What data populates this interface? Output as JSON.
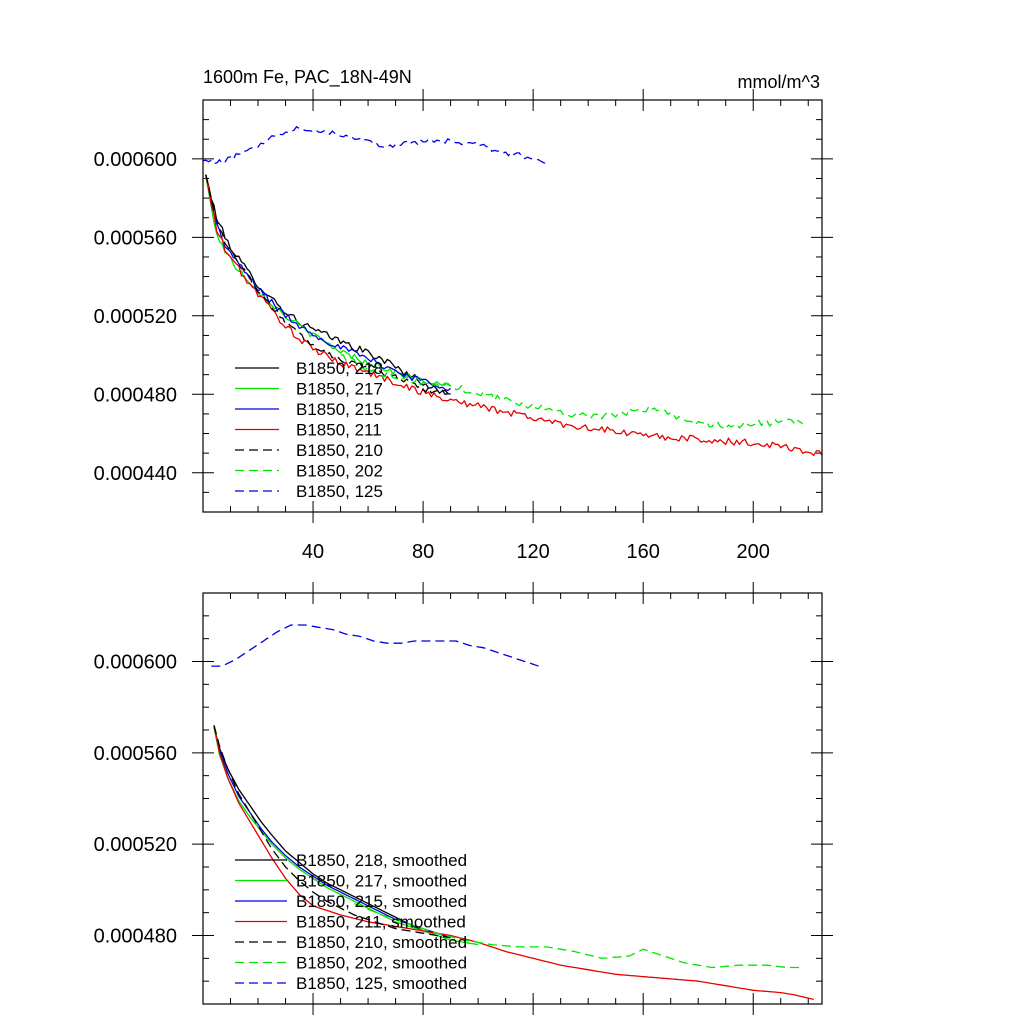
{
  "chart_data": [
    {
      "type": "line",
      "title": "1600m Fe, PAC_18N-49N",
      "units": "mmol/m^3",
      "xlim": [
        0,
        225
      ],
      "ylim": [
        0.00042,
        0.00063
      ],
      "xticks": [
        40,
        80,
        120,
        160,
        200
      ],
      "xtick_labels": [
        "40",
        "80",
        "120",
        "160",
        "200"
      ],
      "yticks": [
        0.00044,
        0.00048,
        0.00052,
        0.00056,
        0.0006
      ],
      "ytick_labels": [
        "0.000440",
        "0.000480",
        "0.000520",
        "0.000560",
        "0.000600"
      ],
      "legend_position": "lower-left",
      "series": [
        {
          "name": "B1850, 218",
          "color": "#000000",
          "dash": "solid",
          "noise": 1.8e-06,
          "x": [
            1,
            3,
            5,
            8,
            12,
            16,
            20,
            25,
            30,
            35,
            40,
            45,
            50,
            55,
            60,
            65,
            70,
            75,
            80,
            85,
            90
          ],
          "values": [
            0.000592,
            0.00058,
            0.00057,
            0.00056,
            0.000551,
            0.000543,
            0.000536,
            0.000529,
            0.000522,
            0.000517,
            0.000513,
            0.00051,
            0.000507,
            0.000504,
            0.000501,
            0.000498,
            0.000494,
            0.00049,
            0.000486,
            0.000482,
            0.00048
          ]
        },
        {
          "name": "B1850, 217",
          "color": "#00e600",
          "dash": "solid",
          "noise": 1.6e-06,
          "x": [
            1,
            3,
            5,
            8,
            12,
            16,
            20,
            25,
            30,
            35,
            40,
            45,
            50,
            55,
            60,
            65,
            70,
            75,
            80,
            85,
            90
          ],
          "values": [
            0.000591,
            0.000575,
            0.000562,
            0.000553,
            0.000545,
            0.000539,
            0.000533,
            0.000526,
            0.00052,
            0.000515,
            0.00051,
            0.000506,
            0.000502,
            0.000499,
            0.000496,
            0.000494,
            0.000491,
            0.000489,
            0.000487,
            0.000485,
            0.000484
          ]
        },
        {
          "name": "B1850, 215",
          "color": "#0000e6",
          "dash": "solid",
          "noise": 1.6e-06,
          "x": [
            1,
            3,
            5,
            8,
            12,
            16,
            20,
            25,
            30,
            35,
            40,
            45,
            50,
            55,
            60,
            65,
            70,
            75,
            80,
            85,
            90
          ],
          "values": [
            0.000592,
            0.000578,
            0.000566,
            0.000556,
            0.000548,
            0.000541,
            0.000534,
            0.000527,
            0.00052,
            0.000515,
            0.000511,
            0.000507,
            0.000504,
            0.000501,
            0.000498,
            0.000495,
            0.000492,
            0.000489,
            0.000487,
            0.000485,
            0.000483
          ]
        },
        {
          "name": "B1850, 211",
          "color": "#e60000",
          "dash": "solid",
          "noise": 1.8e-06,
          "x": [
            1,
            3,
            5,
            8,
            12,
            16,
            20,
            25,
            30,
            35,
            40,
            50,
            60,
            70,
            80,
            90,
            100,
            110,
            120,
            130,
            140,
            150,
            160,
            170,
            180,
            190,
            200,
            210,
            215,
            220,
            225
          ],
          "values": [
            0.000592,
            0.000577,
            0.000564,
            0.000554,
            0.000546,
            0.000538,
            0.000531,
            0.000523,
            0.000515,
            0.000508,
            0.000503,
            0.000496,
            0.000491,
            0.000486,
            0.000481,
            0.000477,
            0.000474,
            0.000471,
            0.000468,
            0.000465,
            0.000463,
            0.000461,
            0.000459,
            0.000458,
            0.000457,
            0.000456,
            0.000455,
            0.000454,
            0.000452,
            0.000451,
            0.000449
          ]
        },
        {
          "name": "B1850, 210",
          "color": "#000000",
          "dash": "dashed",
          "noise": 1.6e-06,
          "x": [
            1,
            3,
            5,
            8,
            12,
            16,
            20,
            25,
            30,
            35,
            40,
            45,
            50,
            55,
            60,
            65,
            70,
            75,
            80,
            85,
            90
          ],
          "values": [
            0.000592,
            0.000579,
            0.000569,
            0.000558,
            0.000549,
            0.000541,
            0.000533,
            0.000525,
            0.000517,
            0.00051,
            0.000505,
            0.000501,
            0.000498,
            0.000496,
            0.000494,
            0.000491,
            0.000489,
            0.000486,
            0.000483,
            0.000481,
            0.00048
          ]
        },
        {
          "name": "B1850, 202",
          "color": "#00e600",
          "dash": "dashed",
          "noise": 1.8e-06,
          "x": [
            50,
            60,
            70,
            80,
            90,
            100,
            110,
            120,
            130,
            140,
            150,
            160,
            170,
            180,
            190,
            200,
            210,
            218
          ],
          "values": [
            0.0005,
            0.000493,
            0.000489,
            0.000486,
            0.000484,
            0.000481,
            0.000477,
            0.000474,
            0.000471,
            0.000469,
            0.000469,
            0.000473,
            0.00047,
            0.000465,
            0.000464,
            0.000465,
            0.000466,
            0.000465
          ]
        },
        {
          "name": "B1850, 125",
          "color": "#0000e6",
          "dash": "dashed",
          "noise": 1.2e-06,
          "x": [
            0,
            5,
            10,
            15,
            20,
            25,
            30,
            35,
            40,
            45,
            50,
            55,
            60,
            65,
            70,
            75,
            80,
            85,
            90,
            95,
            100,
            105,
            110,
            115,
            120,
            126
          ],
          "values": [
            0.000599,
            0.000598,
            0.0006,
            0.000604,
            0.000607,
            0.000611,
            0.000614,
            0.000616,
            0.000615,
            0.000614,
            0.000612,
            0.000611,
            0.000609,
            0.000607,
            0.000607,
            0.000608,
            0.000609,
            0.000609,
            0.000609,
            0.000608,
            0.000607,
            0.000605,
            0.000603,
            0.000602,
            0.0006,
            0.000597
          ]
        }
      ]
    },
    {
      "type": "line",
      "title": "",
      "units": "",
      "xlim": [
        0,
        225
      ],
      "ylim": [
        0.00045,
        0.00063
      ],
      "xticks": [
        40,
        80,
        120,
        160,
        200
      ],
      "xtick_labels": [],
      "yticks": [
        0.00048,
        0.00052,
        0.00056,
        0.0006
      ],
      "ytick_labels": [
        "0.000480",
        "0.000520",
        "0.000560",
        "0.000600"
      ],
      "legend_position": "lower-left",
      "series": [
        {
          "name": "B1850, 218, smoothed",
          "color": "#000000",
          "dash": "solid",
          "noise": 0,
          "x": [
            4,
            6,
            9,
            13,
            17,
            21,
            25,
            30,
            35,
            40,
            45,
            50,
            55,
            60,
            65,
            70,
            75,
            80,
            85,
            88
          ],
          "values": [
            0.000571,
            0.000562,
            0.000553,
            0.000544,
            0.000537,
            0.00053,
            0.000524,
            0.000517,
            0.000512,
            0.000507,
            0.000503,
            0.0005,
            0.000497,
            0.000494,
            0.000491,
            0.000488,
            0.000485,
            0.000482,
            0.000481,
            0.00048
          ]
        },
        {
          "name": "B1850, 217, smoothed",
          "color": "#00e600",
          "dash": "solid",
          "noise": 0,
          "x": [
            4,
            6,
            9,
            13,
            17,
            21,
            25,
            30,
            35,
            40,
            45,
            50,
            55,
            60,
            65,
            70,
            75,
            80,
            85,
            90,
            95,
            100
          ],
          "values": [
            0.000571,
            0.000559,
            0.000549,
            0.000539,
            0.000532,
            0.000526,
            0.00052,
            0.000514,
            0.000509,
            0.000505,
            0.000501,
            0.000498,
            0.000495,
            0.000492,
            0.000489,
            0.000486,
            0.000484,
            0.000482,
            0.00048,
            0.000478,
            0.000477,
            0.000476
          ]
        },
        {
          "name": "B1850, 215, smoothed",
          "color": "#0000e6",
          "dash": "solid",
          "noise": 0,
          "x": [
            4,
            6,
            9,
            13,
            17,
            21,
            25,
            30,
            35,
            40,
            45,
            50,
            55,
            60,
            65,
            70,
            75,
            80,
            85,
            90
          ],
          "values": [
            0.000572,
            0.000561,
            0.000551,
            0.000541,
            0.000534,
            0.000527,
            0.000521,
            0.000515,
            0.00051,
            0.000506,
            0.000502,
            0.000499,
            0.000496,
            0.000493,
            0.00049,
            0.000487,
            0.000485,
            0.000483,
            0.000481,
            0.000479
          ]
        },
        {
          "name": "B1850, 211, smoothed",
          "color": "#e60000",
          "dash": "solid",
          "noise": 0,
          "x": [
            4,
            6,
            9,
            13,
            17,
            21,
            25,
            30,
            35,
            40,
            50,
            60,
            70,
            80,
            90,
            100,
            110,
            120,
            130,
            140,
            150,
            160,
            170,
            180,
            190,
            200,
            210,
            215,
            222
          ],
          "values": [
            0.000572,
            0.00056,
            0.000549,
            0.000538,
            0.00053,
            0.000522,
            0.000514,
            0.000505,
            0.000498,
            0.000493,
            0.000489,
            0.000486,
            0.000484,
            0.000482,
            0.00048,
            0.000477,
            0.000473,
            0.00047,
            0.000467,
            0.000465,
            0.000463,
            0.000462,
            0.000461,
            0.00046,
            0.000458,
            0.000456,
            0.000455,
            0.000454,
            0.000452
          ]
        },
        {
          "name": "B1850, 210, smoothed",
          "color": "#000000",
          "dash": "dashed",
          "noise": 0,
          "x": [
            4,
            6,
            9,
            13,
            17,
            21,
            25,
            30,
            35,
            40,
            45,
            50,
            55,
            60,
            65,
            70,
            75,
            80,
            85,
            90
          ],
          "values": [
            0.000572,
            0.000563,
            0.000553,
            0.000542,
            0.000534,
            0.000526,
            0.000518,
            0.00051,
            0.000504,
            0.000499,
            0.000495,
            0.000492,
            0.000489,
            0.000487,
            0.000485,
            0.000483,
            0.000482,
            0.000481,
            0.00048,
            0.000479
          ]
        },
        {
          "name": "B1850, 202, smoothed",
          "color": "#00e600",
          "dash": "dashed",
          "noise": 0,
          "x": [
            55,
            65,
            75,
            85,
            95,
            105,
            115,
            125,
            135,
            145,
            155,
            160,
            165,
            175,
            185,
            195,
            205,
            212,
            218
          ],
          "values": [
            0.000494,
            0.000489,
            0.000485,
            0.000481,
            0.000478,
            0.000476,
            0.000475,
            0.000475,
            0.000473,
            0.00047,
            0.000471,
            0.000474,
            0.000472,
            0.000468,
            0.000466,
            0.000467,
            0.000467,
            0.000466,
            0.000466
          ]
        },
        {
          "name": "B1850, 125, smoothed",
          "color": "#0000e6",
          "dash": "dashed",
          "noise": 0,
          "x": [
            3,
            7,
            12,
            17,
            22,
            27,
            32,
            37,
            42,
            47,
            52,
            57,
            62,
            67,
            72,
            77,
            82,
            87,
            92,
            97,
            102,
            107,
            112,
            117,
            122
          ],
          "values": [
            0.000598,
            0.000598,
            0.000601,
            0.000605,
            0.000609,
            0.000613,
            0.000616,
            0.000616,
            0.000615,
            0.000614,
            0.000612,
            0.000611,
            0.000609,
            0.000608,
            0.000608,
            0.000609,
            0.000609,
            0.000609,
            0.000609,
            0.000607,
            0.000606,
            0.000604,
            0.000602,
            0.0006,
            0.000598
          ]
        }
      ]
    }
  ]
}
